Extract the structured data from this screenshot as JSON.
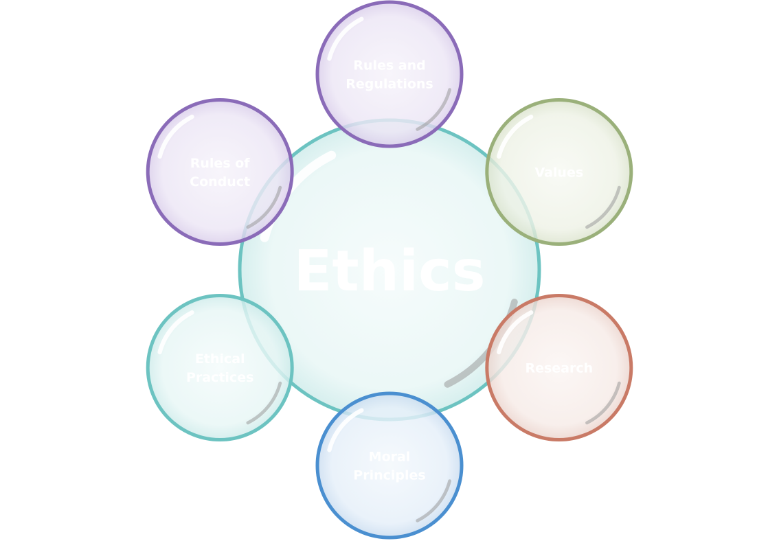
{
  "colors": {
    "teal": "#6cc3c1",
    "purple": "#8a6bb8",
    "green": "#9ab07a",
    "red": "#c97a66",
    "blue": "#4a8fd0"
  },
  "center": {
    "label": "Ethics",
    "color": "teal"
  },
  "nodes": [
    {
      "id": "rules-and-regulations",
      "lines": [
        "Rules and",
        "Regulations"
      ],
      "color": "purple"
    },
    {
      "id": "values",
      "lines": [
        "Values"
      ],
      "color": "green"
    },
    {
      "id": "research",
      "lines": [
        "Research"
      ],
      "color": "red"
    },
    {
      "id": "moral-principles",
      "lines": [
        "Moral",
        "Principles"
      ],
      "color": "blue"
    },
    {
      "id": "ethical-practices",
      "lines": [
        "Ethical",
        "Practices"
      ],
      "color": "teal"
    },
    {
      "id": "rules-of-conduct",
      "lines": [
        "Rules of",
        "Conduct"
      ],
      "color": "purple"
    }
  ]
}
